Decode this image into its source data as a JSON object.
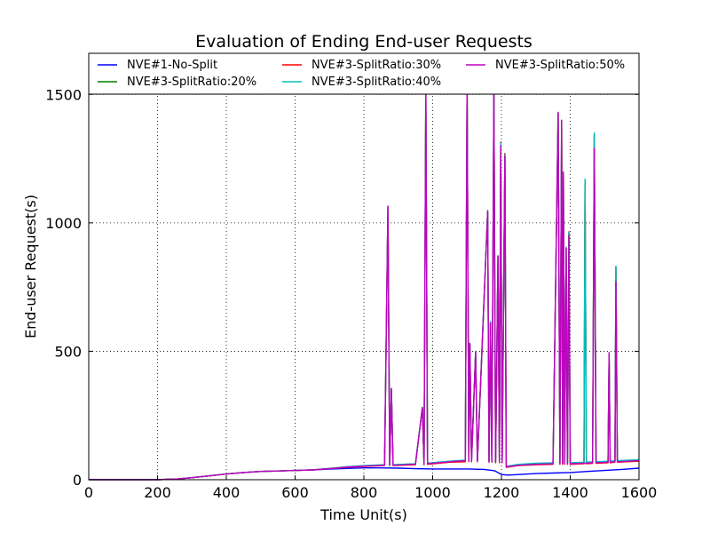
{
  "chart_data": {
    "type": "line",
    "title": "Evaluation of Ending End-user Requests",
    "xlabel": "Time Unit(s)",
    "ylabel": "End-user Request(s)",
    "xlim": [
      0,
      1600
    ],
    "ylim": [
      0,
      1660
    ],
    "xticks": [
      0,
      200,
      400,
      600,
      800,
      1000,
      1200,
      1400,
      1600
    ],
    "xtick_labels": [
      "0",
      "200",
      "400",
      "600",
      "800",
      "1000",
      "1200",
      "1400",
      "1600"
    ],
    "yticks": [
      0,
      500,
      1000,
      1500
    ],
    "ytick_labels": [
      "0",
      "500",
      "1000",
      "1500"
    ],
    "grid": true,
    "legend_position": "top",
    "series": [
      {
        "name": "NVE#1-No-Split",
        "color": "#0000ff",
        "points": [
          [
            0,
            0
          ],
          [
            200,
            0
          ],
          [
            260,
            3
          ],
          [
            300,
            8
          ],
          [
            350,
            15
          ],
          [
            400,
            22
          ],
          [
            450,
            28
          ],
          [
            500,
            32
          ],
          [
            550,
            34
          ],
          [
            600,
            36
          ],
          [
            650,
            38
          ],
          [
            700,
            41
          ],
          [
            750,
            44
          ],
          [
            800,
            46
          ],
          [
            850,
            46
          ],
          [
            900,
            45
          ],
          [
            950,
            43
          ],
          [
            1000,
            42
          ],
          [
            1050,
            42
          ],
          [
            1100,
            42
          ],
          [
            1150,
            40
          ],
          [
            1180,
            35
          ],
          [
            1200,
            20
          ],
          [
            1220,
            18
          ],
          [
            1250,
            20
          ],
          [
            1300,
            24
          ],
          [
            1350,
            26
          ],
          [
            1400,
            28
          ],
          [
            1450,
            32
          ],
          [
            1500,
            36
          ],
          [
            1550,
            40
          ],
          [
            1600,
            45
          ]
        ]
      },
      {
        "name": "NVE#3-SplitRatio:20%",
        "color": "#008000",
        "points": [
          [
            0,
            0
          ],
          [
            200,
            0
          ],
          [
            260,
            3
          ],
          [
            300,
            8
          ],
          [
            350,
            15
          ],
          [
            400,
            22
          ],
          [
            450,
            28
          ],
          [
            500,
            32
          ],
          [
            550,
            34
          ],
          [
            600,
            36
          ],
          [
            650,
            38
          ],
          [
            700,
            44
          ],
          [
            750,
            50
          ],
          [
            800,
            54
          ],
          [
            860,
            58
          ],
          [
            870,
            1060
          ],
          [
            875,
            58
          ],
          [
            880,
            350
          ],
          [
            885,
            58
          ],
          [
            950,
            62
          ],
          [
            970,
            280
          ],
          [
            975,
            62
          ],
          [
            980,
            1510
          ],
          [
            985,
            64
          ],
          [
            1050,
            72
          ],
          [
            1095,
            75
          ],
          [
            1100,
            1550
          ],
          [
            1105,
            75
          ],
          [
            1108,
            530
          ],
          [
            1113,
            74
          ],
          [
            1125,
            500
          ],
          [
            1130,
            73
          ],
          [
            1160,
            1045
          ],
          [
            1164,
            72
          ],
          [
            1168,
            610
          ],
          [
            1172,
            72
          ],
          [
            1178,
            1520
          ],
          [
            1183,
            70
          ],
          [
            1190,
            870
          ],
          [
            1194,
            70
          ],
          [
            1198,
            1310
          ],
          [
            1202,
            70
          ],
          [
            1210,
            1270
          ],
          [
            1214,
            50
          ],
          [
            1250,
            58
          ],
          [
            1300,
            62
          ],
          [
            1350,
            64
          ],
          [
            1365,
            1425
          ],
          [
            1370,
            64
          ],
          [
            1375,
            1395
          ],
          [
            1378,
            64
          ],
          [
            1380,
            1195
          ],
          [
            1384,
            64
          ],
          [
            1388,
            900
          ],
          [
            1392,
            64
          ],
          [
            1396,
            960
          ],
          [
            1400,
            64
          ],
          [
            1440,
            66
          ],
          [
            1443,
            1165
          ],
          [
            1447,
            66
          ],
          [
            1465,
            68
          ],
          [
            1470,
            1340
          ],
          [
            1475,
            68
          ],
          [
            1510,
            70
          ],
          [
            1513,
            490
          ],
          [
            1516,
            70
          ],
          [
            1530,
            72
          ],
          [
            1533,
            830
          ],
          [
            1537,
            72
          ],
          [
            1600,
            76
          ]
        ]
      },
      {
        "name": "NVE#3-SplitRatio:30%",
        "color": "#ff0000",
        "points": [
          [
            0,
            0
          ],
          [
            200,
            0
          ],
          [
            260,
            3
          ],
          [
            300,
            8
          ],
          [
            350,
            15
          ],
          [
            400,
            22
          ],
          [
            450,
            28
          ],
          [
            500,
            32
          ],
          [
            550,
            34
          ],
          [
            600,
            36
          ],
          [
            650,
            38
          ],
          [
            700,
            43
          ],
          [
            750,
            48
          ],
          [
            800,
            52
          ],
          [
            860,
            55
          ],
          [
            870,
            1062
          ],
          [
            875,
            55
          ],
          [
            880,
            352
          ],
          [
            885,
            55
          ],
          [
            950,
            58
          ],
          [
            970,
            282
          ],
          [
            975,
            58
          ],
          [
            980,
            1512
          ],
          [
            985,
            60
          ],
          [
            1050,
            68
          ],
          [
            1095,
            70
          ],
          [
            1100,
            1545
          ],
          [
            1105,
            70
          ],
          [
            1108,
            530
          ],
          [
            1113,
            70
          ],
          [
            1125,
            498
          ],
          [
            1130,
            70
          ],
          [
            1160,
            1048
          ],
          [
            1164,
            68
          ],
          [
            1168,
            612
          ],
          [
            1172,
            68
          ],
          [
            1178,
            1522
          ],
          [
            1183,
            66
          ],
          [
            1190,
            872
          ],
          [
            1194,
            66
          ],
          [
            1198,
            1315
          ],
          [
            1202,
            66
          ],
          [
            1210,
            1268
          ],
          [
            1214,
            48
          ],
          [
            1250,
            55
          ],
          [
            1300,
            58
          ],
          [
            1350,
            60
          ],
          [
            1365,
            1428
          ],
          [
            1370,
            60
          ],
          [
            1375,
            1398
          ],
          [
            1378,
            60
          ],
          [
            1380,
            1198
          ],
          [
            1384,
            60
          ],
          [
            1388,
            905
          ],
          [
            1392,
            60
          ],
          [
            1396,
            965
          ],
          [
            1400,
            60
          ],
          [
            1440,
            62
          ],
          [
            1443,
            1160
          ],
          [
            1447,
            62
          ],
          [
            1465,
            64
          ],
          [
            1470,
            1345
          ],
          [
            1475,
            64
          ],
          [
            1510,
            66
          ],
          [
            1513,
            492
          ],
          [
            1516,
            66
          ],
          [
            1530,
            68
          ],
          [
            1533,
            825
          ],
          [
            1537,
            68
          ],
          [
            1600,
            72
          ]
        ]
      },
      {
        "name": "NVE#3-SplitRatio:40%",
        "color": "#00bfbf",
        "points": [
          [
            0,
            0
          ],
          [
            200,
            0
          ],
          [
            260,
            3
          ],
          [
            300,
            8
          ],
          [
            350,
            15
          ],
          [
            400,
            22
          ],
          [
            450,
            28
          ],
          [
            500,
            32
          ],
          [
            550,
            34
          ],
          [
            600,
            36
          ],
          [
            650,
            38
          ],
          [
            700,
            44
          ],
          [
            750,
            50
          ],
          [
            800,
            55
          ],
          [
            860,
            58
          ],
          [
            870,
            1062
          ],
          [
            875,
            58
          ],
          [
            880,
            355
          ],
          [
            885,
            58
          ],
          [
            950,
            62
          ],
          [
            970,
            282
          ],
          [
            975,
            62
          ],
          [
            980,
            1515
          ],
          [
            985,
            64
          ],
          [
            1050,
            72
          ],
          [
            1095,
            76
          ],
          [
            1100,
            1555
          ],
          [
            1105,
            76
          ],
          [
            1108,
            532
          ],
          [
            1113,
            74
          ],
          [
            1125,
            500
          ],
          [
            1130,
            74
          ],
          [
            1160,
            1048
          ],
          [
            1164,
            72
          ],
          [
            1168,
            615
          ],
          [
            1172,
            72
          ],
          [
            1178,
            1525
          ],
          [
            1183,
            70
          ],
          [
            1190,
            872
          ],
          [
            1194,
            70
          ],
          [
            1198,
            1312
          ],
          [
            1202,
            70
          ],
          [
            1210,
            1265
          ],
          [
            1214,
            52
          ],
          [
            1250,
            60
          ],
          [
            1300,
            64
          ],
          [
            1350,
            66
          ],
          [
            1365,
            1425
          ],
          [
            1370,
            66
          ],
          [
            1375,
            1398
          ],
          [
            1378,
            66
          ],
          [
            1380,
            1195
          ],
          [
            1384,
            66
          ],
          [
            1388,
            905
          ],
          [
            1392,
            66
          ],
          [
            1396,
            962
          ],
          [
            1400,
            66
          ],
          [
            1440,
            68
          ],
          [
            1443,
            1170
          ],
          [
            1447,
            68
          ],
          [
            1465,
            70
          ],
          [
            1470,
            1350
          ],
          [
            1475,
            70
          ],
          [
            1510,
            72
          ],
          [
            1513,
            495
          ],
          [
            1516,
            72
          ],
          [
            1530,
            74
          ],
          [
            1533,
            828
          ],
          [
            1537,
            74
          ],
          [
            1600,
            78
          ]
        ]
      },
      {
        "name": "NVE#3-SplitRatio:50%",
        "color": "#bf00bf",
        "points": [
          [
            0,
            0
          ],
          [
            200,
            0
          ],
          [
            260,
            3
          ],
          [
            300,
            8
          ],
          [
            350,
            15
          ],
          [
            400,
            22
          ],
          [
            450,
            28
          ],
          [
            500,
            32
          ],
          [
            550,
            34
          ],
          [
            600,
            36
          ],
          [
            650,
            38
          ],
          [
            700,
            43
          ],
          [
            750,
            49
          ],
          [
            800,
            53
          ],
          [
            860,
            56
          ],
          [
            870,
            1065
          ],
          [
            875,
            56
          ],
          [
            880,
            355
          ],
          [
            885,
            56
          ],
          [
            950,
            60
          ],
          [
            970,
            280
          ],
          [
            975,
            60
          ],
          [
            980,
            1518
          ],
          [
            985,
            62
          ],
          [
            1050,
            70
          ],
          [
            1095,
            74
          ],
          [
            1100,
            1540
          ],
          [
            1105,
            74
          ],
          [
            1108,
            530
          ],
          [
            1113,
            72
          ],
          [
            1125,
            497
          ],
          [
            1130,
            72
          ],
          [
            1160,
            1045
          ],
          [
            1164,
            70
          ],
          [
            1168,
            610
          ],
          [
            1172,
            70
          ],
          [
            1178,
            1525
          ],
          [
            1183,
            68
          ],
          [
            1190,
            870
          ],
          [
            1194,
            68
          ],
          [
            1198,
            1300
          ],
          [
            1202,
            68
          ],
          [
            1210,
            1260
          ],
          [
            1214,
            50
          ],
          [
            1250,
            56
          ],
          [
            1300,
            60
          ],
          [
            1350,
            62
          ],
          [
            1365,
            1430
          ],
          [
            1370,
            62
          ],
          [
            1375,
            1400
          ],
          [
            1378,
            62
          ],
          [
            1380,
            1195
          ],
          [
            1384,
            62
          ],
          [
            1388,
            900
          ],
          [
            1392,
            62
          ],
          [
            1396,
            950
          ],
          [
            1400,
            62
          ],
          [
            1440,
            64
          ],
          [
            1465,
            66
          ],
          [
            1470,
            1290
          ],
          [
            1475,
            66
          ],
          [
            1510,
            68
          ],
          [
            1513,
            495
          ],
          [
            1516,
            68
          ],
          [
            1530,
            70
          ],
          [
            1533,
            770
          ],
          [
            1537,
            70
          ],
          [
            1600,
            74
          ]
        ]
      }
    ]
  }
}
